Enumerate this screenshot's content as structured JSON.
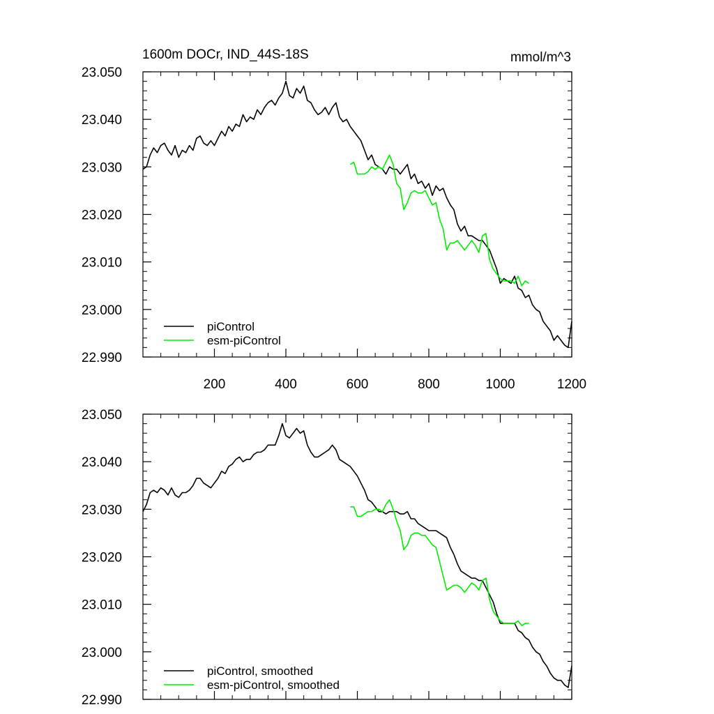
{
  "chart_data": [
    {
      "type": "line",
      "title": "1600m DOCr, IND_44S-18S",
      "units": "mmol/m^3",
      "xlabel": "",
      "ylabel": "",
      "xlim": [
        0,
        1200
      ],
      "ylim": [
        22.99,
        23.05
      ],
      "xticks": [
        200,
        400,
        600,
        800,
        1000,
        1200
      ],
      "yticks": [
        "23.050",
        "23.040",
        "23.030",
        "23.020",
        "23.010",
        "23.000",
        "22.990"
      ],
      "grid": false,
      "legend_position": "bottom-left",
      "series": [
        {
          "name": "piControl",
          "color": "#000000",
          "x": [
            0,
            10,
            20,
            30,
            40,
            50,
            60,
            70,
            80,
            90,
            100,
            110,
            120,
            130,
            140,
            150,
            160,
            170,
            180,
            190,
            200,
            210,
            220,
            230,
            240,
            250,
            260,
            270,
            280,
            290,
            300,
            310,
            320,
            330,
            340,
            350,
            360,
            370,
            380,
            390,
            400,
            410,
            420,
            430,
            440,
            450,
            460,
            470,
            480,
            490,
            500,
            510,
            520,
            530,
            540,
            550,
            560,
            570,
            580,
            590,
            600,
            610,
            620,
            630,
            640,
            650,
            660,
            670,
            680,
            690,
            700,
            710,
            720,
            730,
            740,
            750,
            760,
            770,
            780,
            790,
            800,
            810,
            820,
            830,
            840,
            850,
            860,
            870,
            880,
            890,
            900,
            910,
            920,
            930,
            940,
            950,
            960,
            970,
            980,
            990,
            1000,
            1010,
            1020,
            1030,
            1040,
            1050,
            1060,
            1070,
            1080,
            1090,
            1100,
            1110,
            1120,
            1130,
            1140,
            1150,
            1160,
            1170,
            1180,
            1190,
            1200
          ],
          "y": [
            23.0295,
            23.03,
            23.0325,
            23.034,
            23.033,
            23.0345,
            23.035,
            23.0335,
            23.0325,
            23.0345,
            23.032,
            23.0335,
            23.033,
            23.0345,
            23.0335,
            23.036,
            23.0365,
            23.035,
            23.0345,
            23.0355,
            23.0345,
            23.036,
            23.0375,
            23.0365,
            23.0385,
            23.0375,
            23.039,
            23.0385,
            23.041,
            23.0395,
            23.0405,
            23.04,
            23.042,
            23.041,
            23.0425,
            23.0435,
            23.044,
            23.043,
            23.0445,
            23.0455,
            23.048,
            23.045,
            23.0445,
            23.0465,
            23.0455,
            23.047,
            23.044,
            23.0435,
            23.042,
            23.041,
            23.0415,
            23.0425,
            23.041,
            23.0425,
            23.0435,
            23.0405,
            23.0395,
            23.04,
            23.0385,
            23.0375,
            23.0365,
            23.0355,
            23.0335,
            23.0315,
            23.0325,
            23.0305,
            23.03,
            23.0295,
            23.0285,
            23.03,
            23.0295,
            23.0295,
            23.0285,
            23.0295,
            23.0305,
            23.0275,
            23.0285,
            23.0265,
            23.027,
            23.0255,
            23.0265,
            23.024,
            23.026,
            23.025,
            23.0255,
            23.0235,
            23.022,
            23.021,
            23.018,
            23.0165,
            23.0175,
            23.0155,
            23.0155,
            23.015,
            23.0145,
            23.0145,
            23.0135,
            23.0125,
            23.0105,
            23.0085,
            23.0055,
            23.0065,
            23.006,
            23.0055,
            23.007,
            23.0045,
            23.004,
            23.0025,
            23.003,
            23.001,
            23.0,
            22.9995,
            22.9975,
            22.9965,
            22.9955,
            22.9935,
            22.9945,
            22.9935,
            22.9925,
            22.992,
            22.9975
          ]
        },
        {
          "name": "esm-piControl",
          "color": "#00ee00",
          "x": [
            580,
            590,
            600,
            610,
            620,
            630,
            640,
            650,
            660,
            670,
            680,
            690,
            700,
            710,
            720,
            730,
            740,
            750,
            760,
            770,
            780,
            790,
            800,
            810,
            820,
            830,
            840,
            850,
            860,
            870,
            880,
            890,
            900,
            910,
            920,
            930,
            940,
            950,
            960,
            970,
            980,
            990,
            1000,
            1010,
            1020,
            1030,
            1040,
            1050,
            1060,
            1070,
            1080
          ],
          "y": [
            23.0305,
            23.031,
            23.0285,
            23.0285,
            23.0285,
            23.029,
            23.03,
            23.0295,
            23.03,
            23.0295,
            23.031,
            23.0325,
            23.0305,
            23.0265,
            23.0255,
            23.021,
            23.0225,
            23.0245,
            23.025,
            23.0245,
            23.0245,
            23.025,
            23.0235,
            23.022,
            23.0225,
            23.019,
            23.017,
            23.0125,
            23.014,
            23.014,
            23.0145,
            23.0135,
            23.0125,
            23.0135,
            23.0145,
            23.0135,
            23.012,
            23.0155,
            23.016,
            23.0105,
            23.0085,
            23.0075,
            23.0065,
            23.006,
            23.006,
            23.006,
            23.0055,
            23.007,
            23.005,
            23.006,
            23.0055
          ]
        }
      ]
    },
    {
      "type": "line",
      "title": "",
      "units": "",
      "xlabel": "",
      "ylabel": "",
      "xlim": [
        0,
        1200
      ],
      "ylim": [
        22.99,
        23.05
      ],
      "xticks": [
        200,
        400,
        600,
        800,
        1000,
        1200
      ],
      "yticks": [
        "23.050",
        "23.040",
        "23.030",
        "23.020",
        "23.010",
        "23.000",
        "22.990"
      ],
      "grid": false,
      "legend_position": "bottom-left",
      "series": [
        {
          "name": "piControl, smoothed",
          "color": "#000000",
          "x": [
            0,
            10,
            20,
            30,
            40,
            50,
            60,
            70,
            80,
            90,
            100,
            110,
            120,
            130,
            140,
            150,
            160,
            170,
            180,
            190,
            200,
            210,
            220,
            230,
            240,
            250,
            260,
            270,
            280,
            290,
            300,
            310,
            320,
            330,
            340,
            350,
            360,
            370,
            380,
            390,
            400,
            410,
            420,
            430,
            440,
            450,
            460,
            470,
            480,
            490,
            500,
            510,
            520,
            530,
            540,
            550,
            560,
            570,
            580,
            590,
            600,
            610,
            620,
            630,
            640,
            650,
            660,
            670,
            680,
            690,
            700,
            710,
            720,
            730,
            740,
            750,
            760,
            770,
            780,
            790,
            800,
            810,
            820,
            830,
            840,
            850,
            860,
            870,
            880,
            890,
            900,
            910,
            920,
            930,
            940,
            950,
            960,
            970,
            980,
            990,
            1000,
            1010,
            1020,
            1030,
            1040,
            1050,
            1060,
            1070,
            1080,
            1090,
            1100,
            1110,
            1120,
            1130,
            1140,
            1150,
            1160,
            1170,
            1180,
            1190,
            1200
          ],
          "y": [
            23.0295,
            23.031,
            23.0335,
            23.034,
            23.0335,
            23.0345,
            23.034,
            23.033,
            23.0345,
            23.033,
            23.0325,
            23.0335,
            23.0335,
            23.034,
            23.035,
            23.0365,
            23.0365,
            23.0355,
            23.035,
            23.0345,
            23.0355,
            23.0365,
            23.038,
            23.0375,
            23.039,
            23.0395,
            23.0405,
            23.041,
            23.04,
            23.0405,
            23.0405,
            23.0415,
            23.042,
            23.042,
            23.0425,
            23.0435,
            23.0435,
            23.0435,
            23.0455,
            23.048,
            23.0455,
            23.045,
            23.046,
            23.047,
            23.046,
            23.0465,
            23.0435,
            23.042,
            23.041,
            23.041,
            23.0415,
            23.042,
            23.0425,
            23.0435,
            23.0425,
            23.0405,
            23.04,
            23.0395,
            23.039,
            23.038,
            23.037,
            23.0355,
            23.034,
            23.032,
            23.0315,
            23.0305,
            23.0295,
            23.0295,
            23.029,
            23.0295,
            23.0295,
            23.0295,
            23.029,
            23.029,
            23.0295,
            23.028,
            23.028,
            23.027,
            23.0265,
            23.026,
            23.0255,
            23.0255,
            23.0255,
            23.025,
            23.0245,
            23.024,
            23.022,
            23.0205,
            23.0185,
            23.017,
            23.0165,
            23.016,
            23.0155,
            23.0155,
            23.015,
            23.015,
            23.0135,
            23.012,
            23.0105,
            23.008,
            23.006,
            23.006,
            23.006,
            23.006,
            23.006,
            23.0045,
            23.004,
            23.003,
            23.0025,
            23.001,
            23.0,
            22.9995,
            22.998,
            22.997,
            22.9955,
            22.9945,
            22.994,
            22.994,
            22.993,
            22.9925,
            22.997
          ]
        },
        {
          "name": "esm-piControl, smoothed",
          "color": "#00ee00",
          "x": [
            580,
            590,
            600,
            610,
            620,
            630,
            640,
            650,
            660,
            670,
            680,
            690,
            700,
            710,
            720,
            730,
            740,
            750,
            760,
            770,
            780,
            790,
            800,
            810,
            820,
            830,
            840,
            850,
            860,
            870,
            880,
            890,
            900,
            910,
            920,
            930,
            940,
            950,
            960,
            970,
            980,
            990,
            1000,
            1010,
            1020,
            1030,
            1040,
            1050,
            1060,
            1070,
            1080
          ],
          "y": [
            23.0305,
            23.0305,
            23.0285,
            23.0285,
            23.029,
            23.0295,
            23.0295,
            23.03,
            23.03,
            23.0295,
            23.031,
            23.032,
            23.03,
            23.0275,
            23.0255,
            23.0215,
            23.0225,
            23.0245,
            23.025,
            23.025,
            23.0245,
            23.0245,
            23.0235,
            23.0225,
            23.022,
            23.019,
            23.016,
            23.013,
            23.0135,
            23.014,
            23.014,
            23.0135,
            23.0125,
            23.0135,
            23.0145,
            23.014,
            23.013,
            23.015,
            23.0155,
            23.011,
            23.0085,
            23.0075,
            23.0065,
            23.006,
            23.006,
            23.006,
            23.006,
            23.0065,
            23.0055,
            23.006,
            23.006
          ]
        }
      ]
    }
  ]
}
